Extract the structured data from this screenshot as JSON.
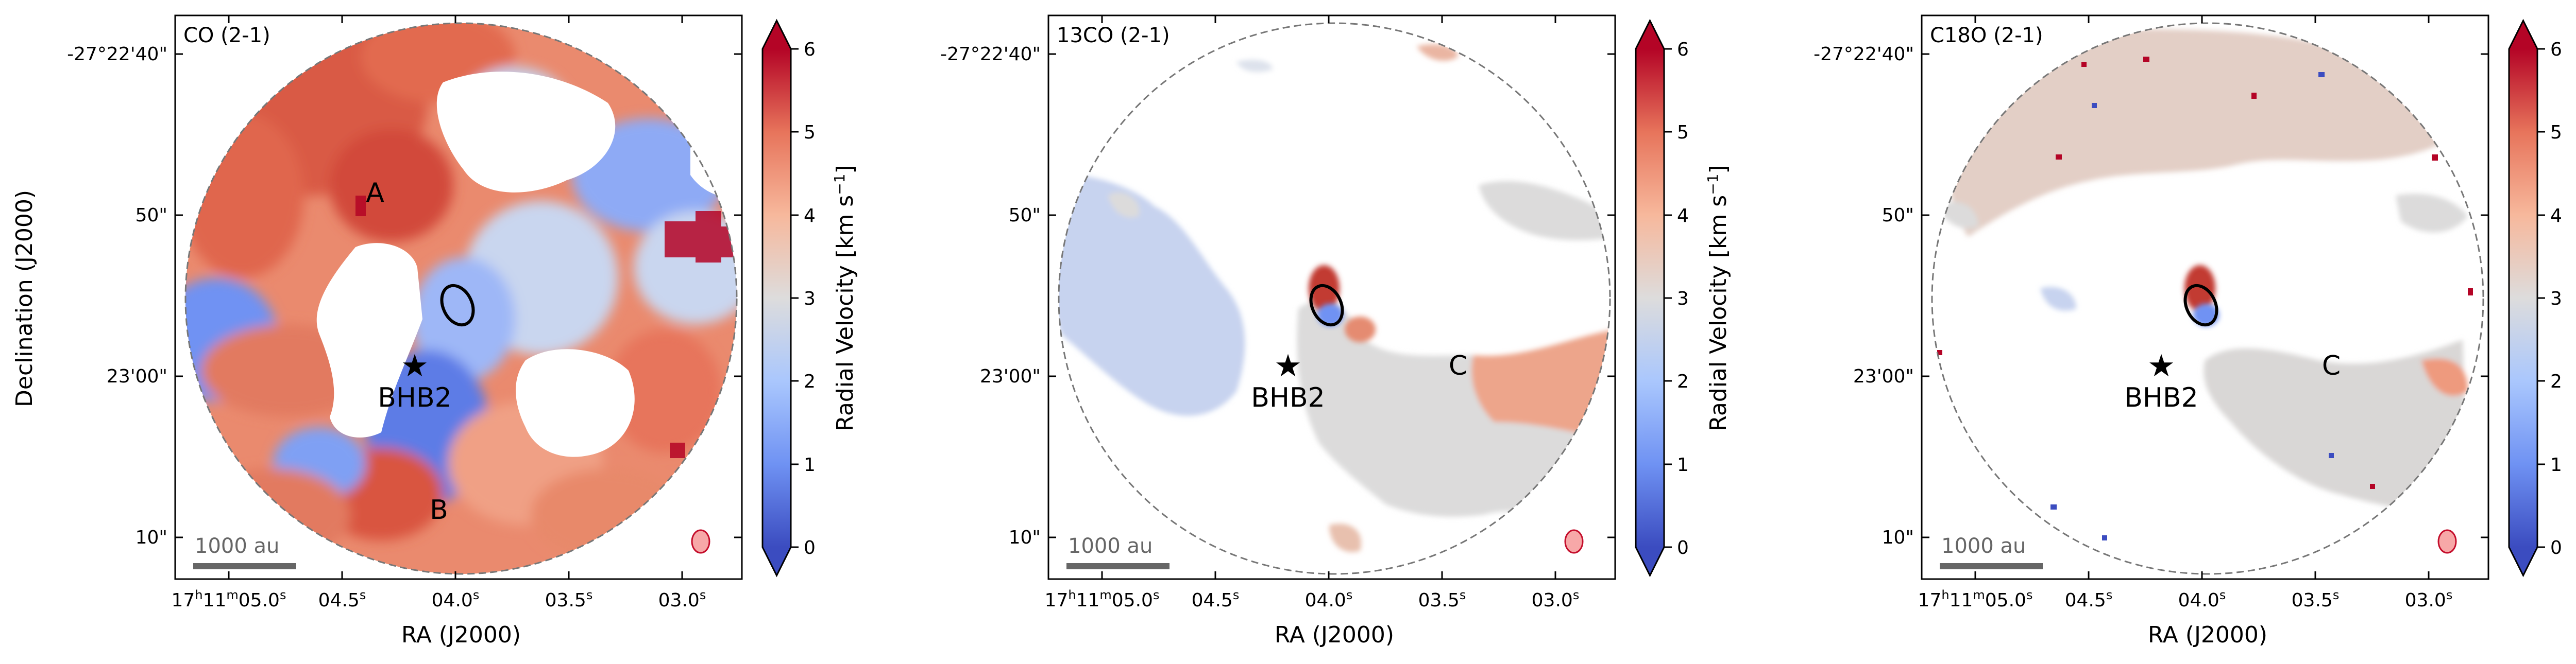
{
  "figure": {
    "shared_ylabel": "Declination (J2000)",
    "xlabel": "RA (J2000)",
    "colorbar_label": "Radial Velocity [km s$^{-1}$]",
    "colorbar_label_text": "Radial Velocity [km s",
    "colorbar_label_sup": "−1",
    "colorbar_label_end": "]",
    "colormap": [
      "#3b4cc0",
      "#6f92f3",
      "#aac7fd",
      "#dddcdc",
      "#f7b89c",
      "#e7745b",
      "#b40426"
    ],
    "scale_bar_label": "1000 au"
  },
  "chart_data": [
    {
      "type": "heatmap",
      "title": "CO (2-1)",
      "xlabel": "RA (J2000)",
      "ylabel": "Declination (J2000)",
      "x_ticks": [
        "17h11m05.0s",
        "04.5s",
        "04.0s",
        "03.5s",
        "03.0s"
      ],
      "x_tick_parts": [
        {
          "pre": "17",
          "h1": "h",
          "mid": "11",
          "h2": "m",
          "num": "05.0",
          "h3": "s"
        },
        {
          "num": "04.5",
          "h3": "s"
        },
        {
          "num": "04.0",
          "h3": "s"
        },
        {
          "num": "03.5",
          "h3": "s"
        },
        {
          "num": "03.0",
          "h3": "s"
        }
      ],
      "y_ticks": [
        "-27°22'40\"",
        "50\"",
        "23'00\"",
        "10\""
      ],
      "colorbar": {
        "label": "Radial Velocity [km s^-1]",
        "min": 0,
        "max": 6,
        "ticks": [
          "0",
          "1",
          "2",
          "3",
          "4",
          "5",
          "6"
        ]
      },
      "annotations": [
        "A",
        "B",
        "BHB2"
      ],
      "scale_bar": "1000 au"
    },
    {
      "type": "heatmap",
      "title": "13CO (2-1)",
      "xlabel": "RA (J2000)",
      "x_ticks": [
        "17h11m05.0s",
        "04.5s",
        "04.0s",
        "03.5s",
        "03.0s"
      ],
      "x_tick_parts": [
        {
          "pre": "17",
          "h1": "h",
          "mid": "11",
          "h2": "m",
          "num": "05.0",
          "h3": "s"
        },
        {
          "num": "04.5",
          "h3": "s"
        },
        {
          "num": "04.0",
          "h3": "s"
        },
        {
          "num": "03.5",
          "h3": "s"
        },
        {
          "num": "03.0",
          "h3": "s"
        }
      ],
      "y_ticks": [
        "-27°22'40\"",
        "50\"",
        "23'00\"",
        "10\""
      ],
      "colorbar": {
        "label": "Radial Velocity [km s^-1]",
        "min": 0,
        "max": 6,
        "ticks": [
          "0",
          "1",
          "2",
          "3",
          "4",
          "5",
          "6"
        ]
      },
      "annotations": [
        "C",
        "BHB2"
      ],
      "scale_bar": "1000 au"
    },
    {
      "type": "heatmap",
      "title": "C18O (2-1)",
      "xlabel": "RA (J2000)",
      "x_ticks": [
        "17h11m05.0s",
        "04.5s",
        "04.0s",
        "03.5s",
        "03.0s"
      ],
      "x_tick_parts": [
        {
          "pre": "17",
          "h1": "h",
          "mid": "11",
          "h2": "m",
          "num": "05.0",
          "h3": "s"
        },
        {
          "num": "04.5",
          "h3": "s"
        },
        {
          "num": "04.0",
          "h3": "s"
        },
        {
          "num": "03.5",
          "h3": "s"
        },
        {
          "num": "03.0",
          "h3": "s"
        }
      ],
      "y_ticks": [
        "-27°22'40\"",
        "50\"",
        "23'00\"",
        "10\""
      ],
      "colorbar": {
        "label": "Radial Velocity [km s^-1]",
        "min": 0,
        "max": 6,
        "ticks": [
          "0",
          "1",
          "2",
          "3",
          "4",
          "5",
          "6"
        ]
      },
      "annotations": [
        "C",
        "BHB2"
      ],
      "scale_bar": "1000 au"
    }
  ]
}
